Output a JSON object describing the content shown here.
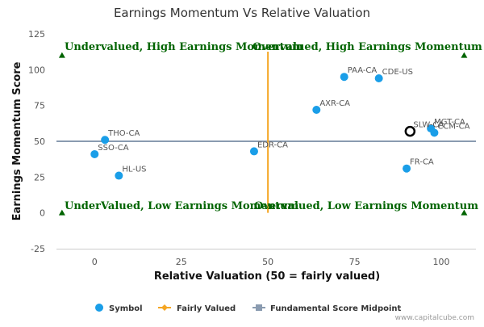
{
  "chart_data": {
    "type": "scatter",
    "title": "Earnings Momentum Vs Relative Valuation",
    "xlabel": "Relative Valuation (50 = fairly valued)",
    "ylabel": "Earnings Momentum Score",
    "xlim": [
      -11,
      110
    ],
    "ylim": [
      -25,
      125
    ],
    "xticks": [
      0,
      25,
      50,
      75,
      100
    ],
    "yticks": [
      -25,
      0,
      25,
      50,
      75,
      100,
      125
    ],
    "grid": false,
    "series": [
      {
        "name": "Symbol",
        "color": "#1a9ee8",
        "points": [
          {
            "label": "PAA-CA",
            "x": 72,
            "y": 95
          },
          {
            "label": "CDE-US",
            "x": 82,
            "y": 94
          },
          {
            "label": "AXR-CA",
            "x": 64,
            "y": 72
          },
          {
            "label": "MGT-CA",
            "x": 97,
            "y": 59
          },
          {
            "label": "SLW-CA",
            "x": 91,
            "y": 57
          },
          {
            "label": "CCM-CA",
            "x": 98,
            "y": 56
          },
          {
            "label": "THO-CA",
            "x": 3,
            "y": 51
          },
          {
            "label": "EDR-CA",
            "x": 46,
            "y": 43
          },
          {
            "label": "SSO-CA",
            "x": 0,
            "y": 41
          },
          {
            "label": "FR-CA",
            "x": 90,
            "y": 31
          },
          {
            "label": "HL-US",
            "x": 7,
            "y": 26
          }
        ]
      },
      {
        "name": "Fairly Valued",
        "color": "#f5a623",
        "x": 50
      },
      {
        "name": "Fundamental Score Midpoint",
        "color": "#8a9bb0",
        "y": 50
      }
    ],
    "highlight": {
      "x": 91,
      "y": 57
    },
    "quadrants": {
      "top_left": "Undervalued, High Earnings Momentum",
      "top_right": "Overvalued, High Earnings Momentum",
      "bottom_left": "UnderValued, Low Earnings Momentum",
      "bottom_right": "Overvalued, Low Earnings Momentum"
    },
    "legend_position": "bottom",
    "credit": "www.capitalcube.com",
    "colors": {
      "quadrant_text": "#006400",
      "marker": "#006400"
    }
  }
}
